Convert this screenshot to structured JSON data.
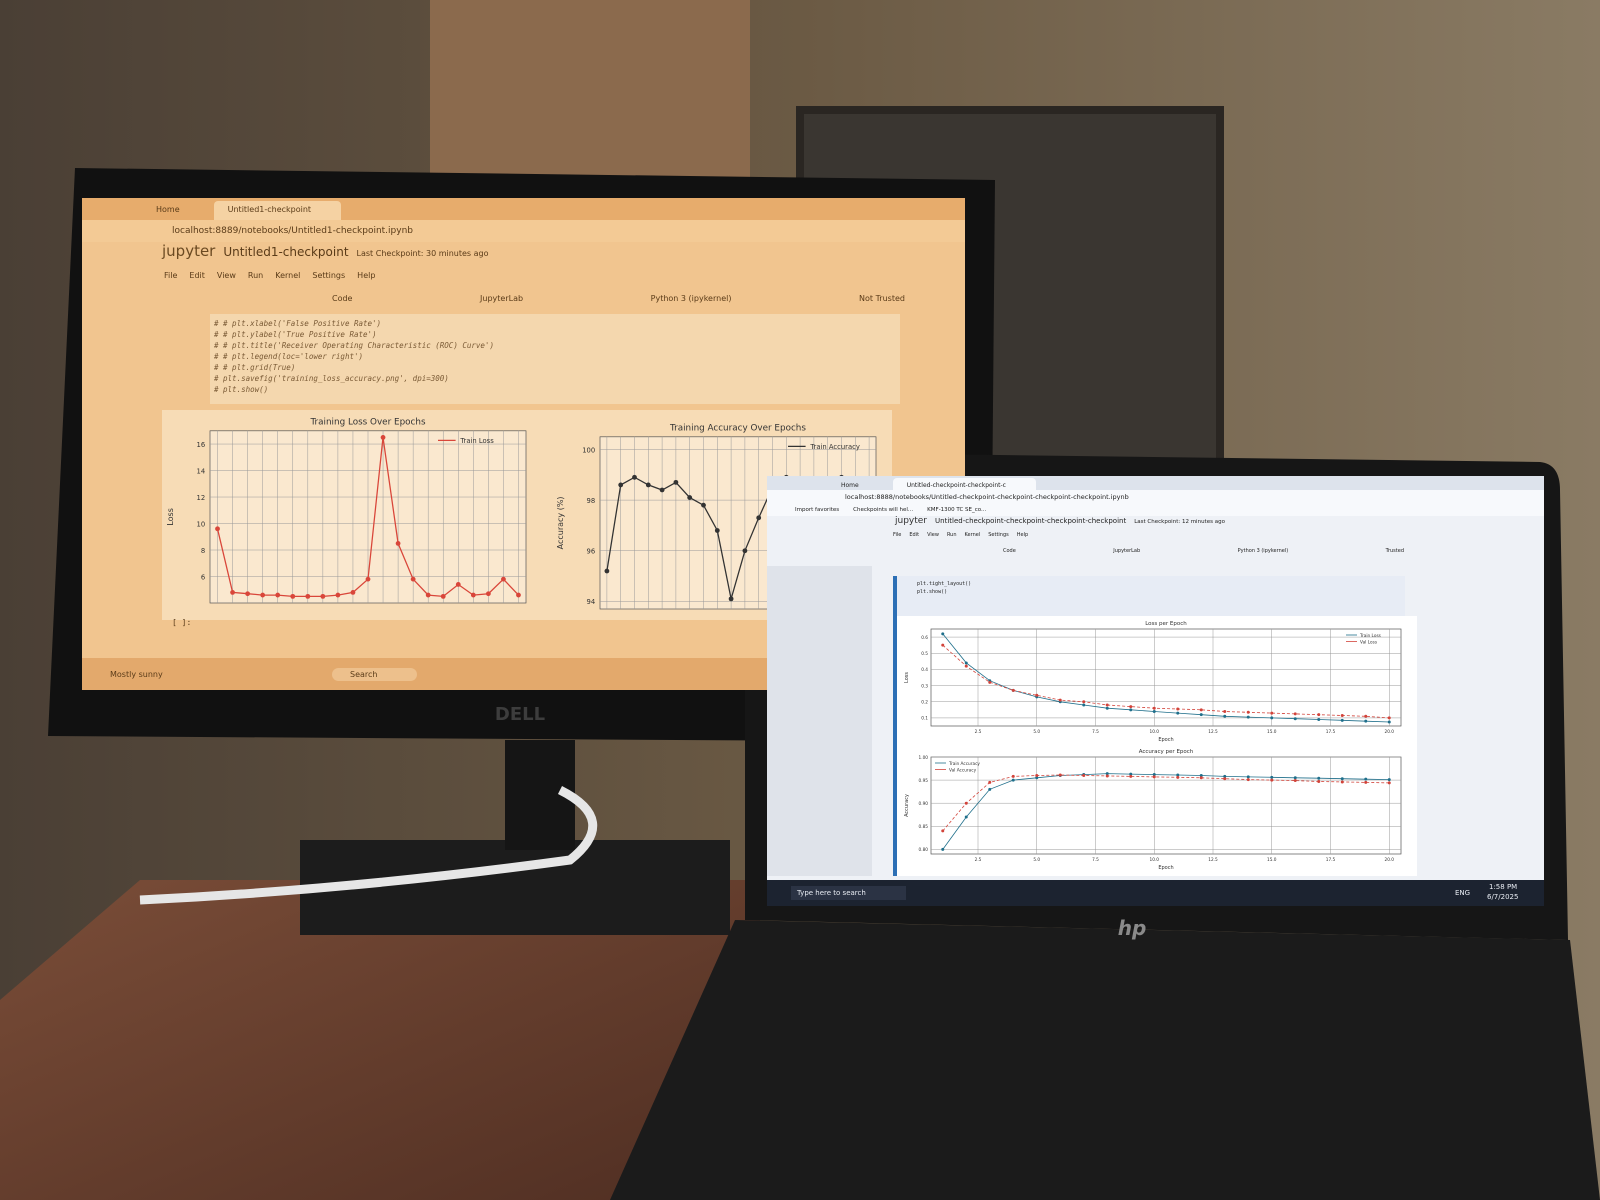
{
  "monitor": {
    "brand": "DELL",
    "tabs": [
      "Home",
      "Untitled1-checkpoint"
    ],
    "url": "localhost:8889/notebooks/Untitled1-checkpoint.ipynb",
    "app": "jupyter",
    "notebook": "Untitled1-checkpoint",
    "checkpoint": "Last Checkpoint: 30 minutes ago",
    "menu": [
      "File",
      "Edit",
      "View",
      "Run",
      "Kernel",
      "Settings",
      "Help"
    ],
    "trust": "Not Trusted",
    "cell_type": "Code",
    "jupyterlab": "JupyterLab",
    "kernel": "Python 3 (ipykernel)",
    "code": [
      "# # plt.xlabel('False Positive Rate')",
      "# # plt.ylabel('True Positive Rate')",
      "# # plt.title('Receiver Operating Characteristic (ROC) Curve')",
      "# # plt.legend(loc='lower right')",
      "# # plt.grid(True)",
      "# plt.savefig('training_loss_accuracy.png', dpi=300)",
      "# plt.show()"
    ],
    "prompt": "[ ]:",
    "charts": [
      {
        "type": "line",
        "title": "Training Loss Over Epochs",
        "ylabel": "Loss",
        "ylim": [
          4,
          17
        ],
        "yticks": [
          6,
          8,
          10,
          12,
          14,
          16
        ],
        "grid": true,
        "legend": "upper right",
        "series": [
          {
            "name": "Train Loss",
            "color": "#d9463a",
            "values": [
              9.6,
              4.8,
              4.7,
              4.6,
              4.6,
              4.5,
              4.5,
              4.5,
              4.6,
              4.8,
              5.8,
              16.5,
              8.5,
              5.8,
              4.6,
              4.5,
              5.4,
              4.6,
              4.7,
              5.8,
              4.6
            ]
          }
        ]
      },
      {
        "type": "line",
        "title": "Training Accuracy Over Epochs",
        "ylabel": "Accuracy (%)",
        "ylim": [
          93.7,
          100.5
        ],
        "yticks": [
          94,
          96,
          98,
          100
        ],
        "grid": true,
        "legend": "upper right",
        "series": [
          {
            "name": "Train Accuracy",
            "color": "#333333",
            "values": [
              95.2,
              98.6,
              98.9,
              98.6,
              98.4,
              98.7,
              98.1,
              97.8,
              96.8,
              94.1,
              96.0,
              97.3,
              98.5,
              98.9,
              98.2,
              98.7,
              98.4,
              98.9,
              98.6,
              98.8
            ]
          }
        ]
      }
    ],
    "weather": "Mostly sunny",
    "search": "Search"
  },
  "laptop": {
    "brand": "hp",
    "tabs": [
      "Home",
      "Untitled-checkpoint-checkpoint-c"
    ],
    "url": "localhost:8888/notebooks/Untitled-checkpoint-checkpoint-checkpoint-checkpoint.ipynb",
    "bookmarks": [
      "Import favorites",
      "Checkpoints will hel...",
      "KMF-1300 TC SE_co..."
    ],
    "app": "jupyter",
    "notebook": "Untitled-checkpoint-checkpoint-checkpoint-checkpoint",
    "checkpoint": "Last Checkpoint: 12 minutes ago",
    "menu": [
      "File",
      "Edit",
      "View",
      "Run",
      "Kernel",
      "Settings",
      "Help"
    ],
    "trust": "Trusted",
    "cell_type": "Code",
    "jupyterlab": "JupyterLab",
    "kernel": "Python 3 (ipykernel)",
    "code": [
      "plt.tight_layout()",
      "plt.show()"
    ],
    "charts": [
      {
        "type": "line",
        "title": "Loss per Epoch",
        "xlabel": "Epoch",
        "ylabel": "Loss",
        "x": [
          1,
          2,
          3,
          4,
          5,
          6,
          7,
          8,
          9,
          10,
          11,
          12,
          13,
          14,
          15,
          16,
          17,
          18,
          19,
          20
        ],
        "xlim": [
          0.5,
          20.5
        ],
        "xticks": [
          2.5,
          {
            "value": 5,
            "label": "5.0"
          },
          7.5,
          {
            "value": 10,
            "label": "10.0"
          },
          12.5,
          {
            "value": 15,
            "label": "15.0"
          },
          17.5,
          {
            "value": 20,
            "label": "20.0"
          }
        ],
        "ylim": [
          0.05,
          0.65
        ],
        "yticks": [
          0.1,
          0.2,
          0.3,
          0.4,
          0.5,
          0.6
        ],
        "grid": true,
        "legend": "upper right",
        "series": [
          {
            "name": "Train Loss",
            "color": "#1f6f8b",
            "style": "solid",
            "values": [
              0.62,
              0.44,
              0.33,
              0.27,
              0.23,
              0.2,
              0.18,
              0.16,
              0.15,
              0.14,
              0.13,
              0.12,
              0.11,
              0.105,
              0.1,
              0.095,
              0.09,
              0.085,
              0.08,
              0.075
            ]
          },
          {
            "name": "Val Loss",
            "color": "#d2433a",
            "style": "dashed",
            "values": [
              0.55,
              0.42,
              0.32,
              0.27,
              0.24,
              0.21,
              0.2,
              0.18,
              0.17,
              0.16,
              0.155,
              0.15,
              0.14,
              0.135,
              0.13,
              0.125,
              0.12,
              0.115,
              0.11,
              0.1
            ]
          }
        ]
      },
      {
        "type": "line",
        "title": "Accuracy per Epoch",
        "xlabel": "Epoch",
        "ylabel": "Accuracy",
        "x": [
          1,
          2,
          3,
          4,
          5,
          6,
          7,
          8,
          9,
          10,
          11,
          12,
          13,
          14,
          15,
          16,
          17,
          18,
          19,
          20
        ],
        "xlim": [
          0.5,
          20.5
        ],
        "xticks": [
          2.5,
          {
            "value": 5,
            "label": "5.0"
          },
          7.5,
          {
            "value": 10,
            "label": "10.0"
          },
          12.5,
          {
            "value": 15,
            "label": "15.0"
          },
          17.5,
          {
            "value": 20,
            "label": "20.0"
          }
        ],
        "ylim": [
          0.79,
          1.0
        ],
        "yticks": [
          {
            "value": 0.8,
            "label": "0.80"
          },
          0.85,
          {
            "value": 0.9,
            "label": "0.90"
          },
          0.95,
          {
            "value": 1,
            "label": "1.00"
          }
        ],
        "grid": true,
        "legend": "upper left",
        "series": [
          {
            "name": "Train Accuracy",
            "color": "#1f6f8b",
            "style": "solid",
            "values": [
              0.8,
              0.87,
              0.93,
              0.95,
              0.955,
              0.96,
              0.962,
              0.964,
              0.963,
              0.962,
              0.961,
              0.96,
              0.958,
              0.957,
              0.956,
              0.955,
              0.954,
              0.953,
              0.952,
              0.951
            ]
          },
          {
            "name": "Val Accuracy",
            "color": "#d2433a",
            "style": "dashed",
            "values": [
              0.84,
              0.9,
              0.945,
              0.958,
              0.96,
              0.961,
              0.96,
              0.959,
              0.958,
              0.957,
              0.956,
              0.955,
              0.953,
              0.951,
              0.95,
              0.949,
              0.947,
              0.946,
              0.945,
              0.944
            ]
          }
        ]
      }
    ],
    "search": "Type here to search",
    "language": "ENG",
    "time": "1:58 PM",
    "date": "6/7/2025"
  }
}
